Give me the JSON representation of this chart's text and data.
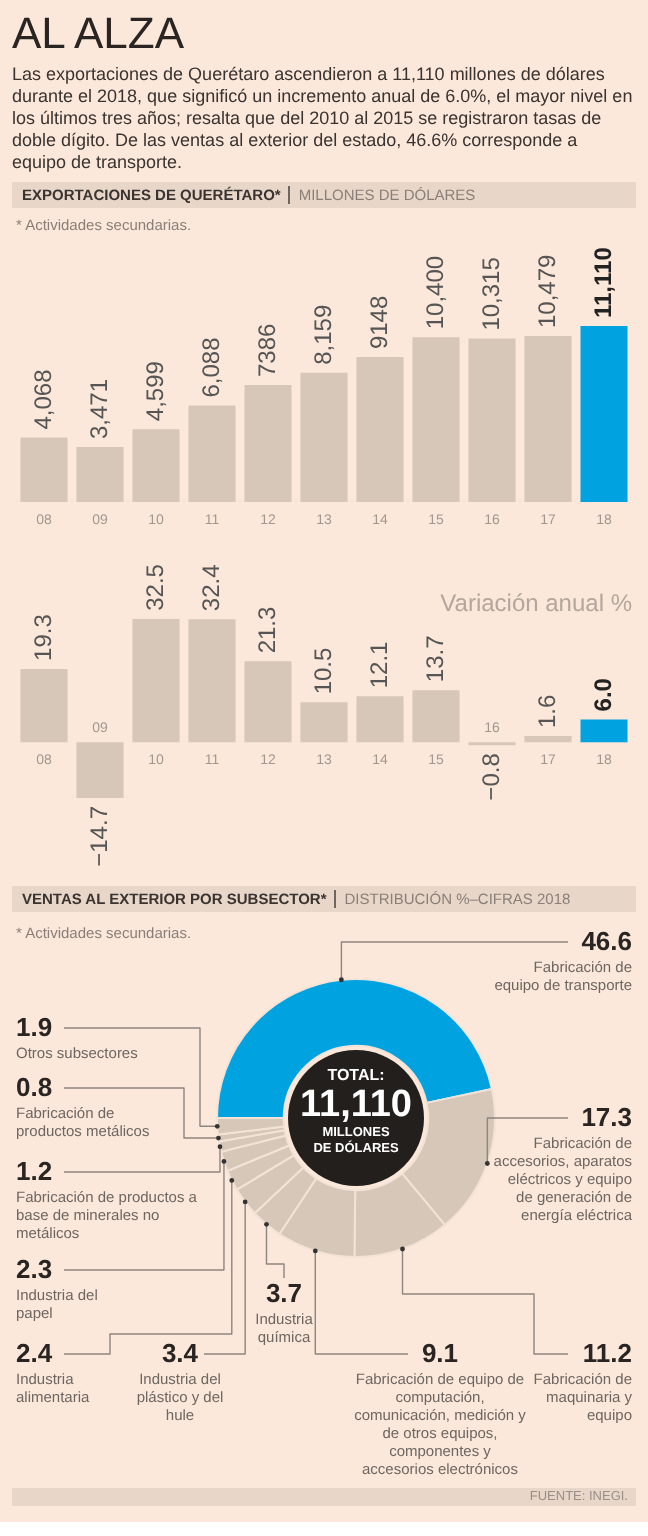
{
  "chart_data": [
    {
      "type": "bar",
      "title": "EXPORTACIONES DE QUERÉTARO*",
      "subtitle": "MILLONES DE DÓLARES",
      "annotations": [
        "AL ALZA",
        "Las exportaciones de Querétaro ascendieron a 11,110 millones de dólares durante el 2018, que significó un incremento anual de 6.0%, el mayor nivel en los últimos tres años; resalta que del 2010 al 2015 se registraron tasas de doble dígito. De las ventas al exterior del estado, 46.6% corresponde a equipo de transporte.",
        "* Actividades secundarias."
      ],
      "categories": [
        "08",
        "09",
        "10",
        "11",
        "12",
        "13",
        "14",
        "15",
        "16",
        "17",
        "18"
      ],
      "values": [
        4068,
        3471,
        4599,
        6088,
        7386,
        8159,
        9148,
        10400,
        10315,
        10479,
        11110
      ],
      "value_labels": [
        "4,068",
        "3,471",
        "4,599",
        "6,088",
        "7386",
        "8,159",
        "9148",
        "10,400",
        "10,315",
        "10,479",
        "11,110"
      ],
      "colors": [
        "#d7c7b9",
        "#d7c7b9",
        "#d7c7b9",
        "#d7c7b9",
        "#d7c7b9",
        "#d7c7b9",
        "#d7c7b9",
        "#d7c7b9",
        "#d7c7b9",
        "#d7c7b9",
        "#00a3e0"
      ]
    },
    {
      "type": "bar",
      "title": "Variación anual %",
      "categories": [
        "08",
        "09",
        "10",
        "11",
        "12",
        "13",
        "14",
        "15",
        "16",
        "17",
        "18"
      ],
      "values": [
        19.3,
        -14.7,
        32.5,
        32.4,
        21.3,
        10.5,
        12.1,
        13.7,
        -0.8,
        1.6,
        6.0
      ],
      "value_labels": [
        "19.3",
        "−14.7",
        "32.5",
        "32.4",
        "21.3",
        "10.5",
        "12.1",
        "13.7",
        "−0.8",
        "1.6",
        "6.0"
      ],
      "colors": [
        "#d7c7b9",
        "#d7c7b9",
        "#d7c7b9",
        "#d7c7b9",
        "#d7c7b9",
        "#d7c7b9",
        "#d7c7b9",
        "#d7c7b9",
        "#d7c7b9",
        "#d7c7b9",
        "#00a3e0"
      ]
    },
    {
      "type": "donut",
      "title": "VENTAS AL EXTERIOR POR SUBSECTOR*",
      "subtitle": "DISTRIBUCIÓN %–CIFRAS 2018",
      "annotations": [
        "* Actividades secundarias.",
        "TOTAL:",
        "11,110",
        "MILLONES DE DÓLARES",
        "FUENTE: INEGI."
      ],
      "categories": [
        "Fabricación de equipo de transporte",
        "Fabricación de accesorios, aparatos eléctricos y equipo de generación de energía eléctrica",
        "Fabricación de maquinaria y equipo",
        "Fabricación de equipo de computación, comunicación, medición y de otros equipos, componentes y accesorios electrónicos",
        "Industria química",
        "Industria del plástico y del hule",
        "Industria alimentaria",
        "Industria del papel",
        "Fabricación de productos a base de minerales no metálicos",
        "Fabricación de productos metálicos",
        "Otros subsectores"
      ],
      "values": [
        46.6,
        17.3,
        11.2,
        9.1,
        3.7,
        3.4,
        2.4,
        2.3,
        1.2,
        0.8,
        1.9
      ],
      "data_labels": true,
      "colors": [
        "#00a3e0",
        "#d7c7b9",
        "#d7c7b9",
        "#d7c7b9",
        "#d7c7b9",
        "#d7c7b9",
        "#d7c7b9",
        "#d7c7b9",
        "#d7c7b9",
        "#d7c7b9",
        "#d7c7b9"
      ]
    }
  ]
}
